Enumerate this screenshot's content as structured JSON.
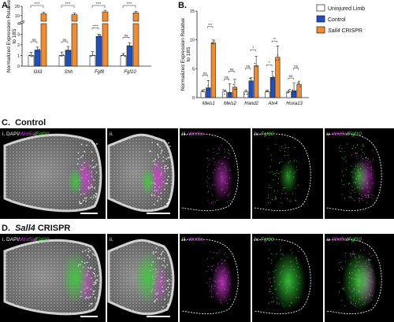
{
  "panels": {
    "A": "A.",
    "B": "B.",
    "C": "C.",
    "D": "D.",
    "C_title": "Control",
    "D_title_gene": "Sall4",
    "D_title_rest": " CRISPR"
  },
  "legend": {
    "items": [
      {
        "text": "Uninjured Limb",
        "italic": "",
        "color": "#ffffff"
      },
      {
        "text": "Control",
        "italic": "",
        "color": "#1f4fbf"
      },
      {
        "text": " CRISPR",
        "italic": "Sall4",
        "color": "#f28a2e"
      }
    ]
  },
  "chart_data": [
    {
      "type": "bar",
      "ylabel": "Normalized Expression Relative to 18S",
      "broken_axis": true,
      "lower_ticks": [
        "0",
        "1",
        "2",
        "3",
        "4"
      ],
      "upper_ticks": [
        "10",
        "20"
      ],
      "categories": [
        "Gli3",
        "Shh",
        "Fgf8",
        "Fgf10"
      ],
      "series": [
        {
          "name": "Uninjured Limb",
          "values": [
            1.0,
            1.0,
            1.0,
            1.0
          ]
        },
        {
          "name": "Control",
          "values": [
            1.5,
            1.5,
            2.8,
            1.9
          ]
        },
        {
          "name": "Sall4 CRISPR",
          "values": [
            12,
            11,
            14,
            13
          ]
        }
      ],
      "significance": [
        {
          "pair": "Uninjured-Control",
          "labels": [
            "ns",
            "ns",
            "****",
            "ns"
          ]
        },
        {
          "pair": "Uninjured-CRISPR",
          "labels": [
            "****",
            "****",
            "****",
            "****"
          ]
        }
      ]
    },
    {
      "type": "bar",
      "ylabel": "Normalized Expression Relative to 18S",
      "yticks": [
        "0",
        "5",
        "10",
        "15"
      ],
      "ylim": [
        0,
        15
      ],
      "categories": [
        "Meis1",
        "Meis2",
        "Hand2",
        "Alx4",
        "Hoxa13"
      ],
      "series": [
        {
          "name": "Uninjured Limb",
          "values": [
            1.0,
            1.0,
            1.0,
            1.0,
            1.0
          ]
        },
        {
          "name": "Control",
          "values": [
            1.7,
            0.9,
            2.9,
            3.5,
            1.2
          ]
        },
        {
          "name": "Sall4 CRISPR",
          "values": [
            9.5,
            1.8,
            5.5,
            7.0,
            2.3
          ]
        }
      ],
      "significance": [
        "ns",
        "***",
        "ns",
        "ns",
        "ns",
        "*",
        "*",
        "**",
        "ns",
        "ns"
      ]
    }
  ],
  "image_rows": [
    {
      "labels": [
        [
          {
            "t": "i. DAPI/",
            "c": "#ffffff"
          },
          {
            "t": "Wnt5a",
            "c": "#e040e0",
            "i": true
          },
          {
            "t": "/",
            "c": "#ffffff"
          },
          {
            "t": "Fgf10",
            "c": "#4cdc4c",
            "i": true
          }
        ],
        [
          {
            "t": "ii.",
            "c": "#ffffff"
          }
        ],
        [
          {
            "t": "iii. ",
            "c": "#ffffff"
          },
          {
            "t": "Wnt5a",
            "c": "#e040e0",
            "i": true
          }
        ],
        [
          {
            "t": "iv. ",
            "c": "#ffffff"
          },
          {
            "t": "Fgf10",
            "c": "#4cdc4c",
            "i": true
          }
        ],
        [
          {
            "t": "v. ",
            "c": "#ffffff"
          },
          {
            "t": "Wnt5a",
            "c": "#e040e0",
            "i": true
          },
          {
            "t": "/",
            "c": "#ffffff"
          },
          {
            "t": "Fgf10",
            "c": "#4cdc4c",
            "i": true
          }
        ]
      ]
    },
    {
      "labels": [
        [
          {
            "t": "i. DAPI/",
            "c": "#ffffff"
          },
          {
            "t": "Wnt5a",
            "c": "#e040e0",
            "i": true
          },
          {
            "t": "/",
            "c": "#ffffff"
          },
          {
            "t": "Fgf10",
            "c": "#4cdc4c",
            "i": true
          }
        ],
        [
          {
            "t": "ii.",
            "c": "#ffffff"
          }
        ],
        [
          {
            "t": "iii. ",
            "c": "#ffffff"
          },
          {
            "t": "Wnt5a",
            "c": "#e040e0",
            "i": true
          }
        ],
        [
          {
            "t": "iv. ",
            "c": "#ffffff"
          },
          {
            "t": "Fgf10",
            "c": "#4cdc4c",
            "i": true
          }
        ],
        [
          {
            "t": "v. ",
            "c": "#ffffff"
          },
          {
            "t": "Wnt5a",
            "c": "#e040e0",
            "i": true
          },
          {
            "t": "/",
            "c": "#ffffff"
          },
          {
            "t": "Fgf10",
            "c": "#4cdc4c",
            "i": true
          }
        ]
      ]
    }
  ]
}
